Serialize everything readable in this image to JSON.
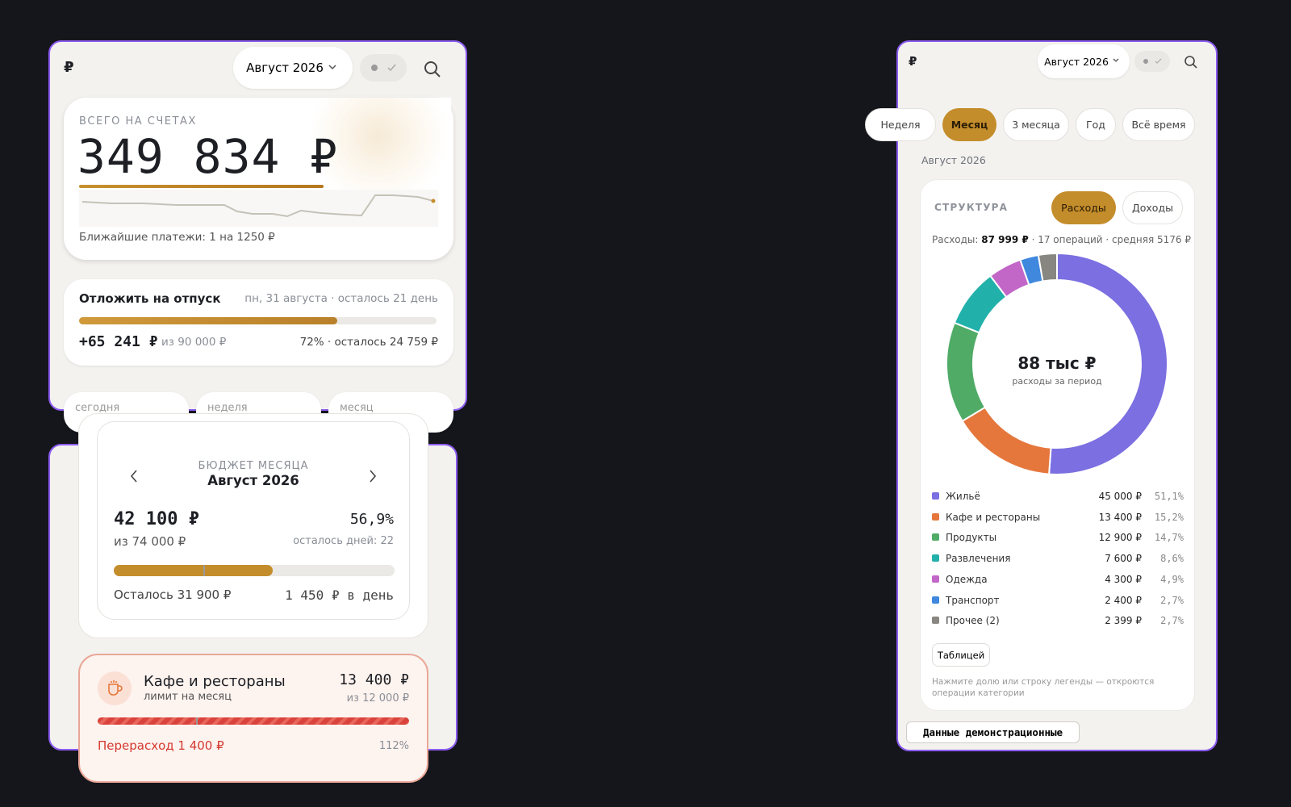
{
  "home": {
    "logo": "₽",
    "month": "Август 2026",
    "balance": {
      "label": "ВСЕГО НА СЧЕТАХ",
      "total": "349 834 ₽",
      "upcoming": "Ближайшие платежи: 1 на 1250 ₽"
    },
    "goal": {
      "title": "Отложить на отпуск",
      "date": "пн, 31 августа · осталось 21 день",
      "amount": "+65 241 ₽",
      "of": "из 90 000 ₽",
      "status": "72% · осталось 24 759 ₽"
    },
    "chips": [
      "сегодня",
      "неделя",
      "месяц"
    ]
  },
  "budget": {
    "label": "БЮДЖЕТ МЕСЯЦА",
    "month": "Август 2026",
    "spent": "42 100 ₽",
    "percent": "56,9%",
    "of": "из 74 000 ₽",
    "days_left": "осталось дней: 22",
    "remaining": "Осталось 31 900 ₽",
    "per_day": "1 450 ₽ в день",
    "category": {
      "name": "Кафе и рестораны",
      "subtitle": "лимит на месяц",
      "amount": "13 400 ₽",
      "of": "из 12 000 ₽",
      "overspend": "Перерасход 1 400 ₽",
      "percent": "112%"
    }
  },
  "structure": {
    "logo": "₽",
    "month": "Август 2026",
    "periods": [
      "Неделя",
      "Месяц",
      "3 месяца",
      "Год",
      "Всё время"
    ],
    "period_label": "Август 2026",
    "title": "СТРУКТУРА",
    "toggles": [
      "Расходы",
      "Доходы"
    ],
    "summary": {
      "prefix": "Расходы:",
      "total": "87 999 ₽",
      "rest": "· 17 операций · средняя 5176 ₽"
    },
    "center_value": "88 тыс ₽",
    "center_caption": "расходы за период",
    "chart": {
      "type": "pie",
      "categories": [
        "Жильё",
        "Кафе и рестораны",
        "Продукты",
        "Развлечения",
        "Одежда",
        "Транспорт",
        "Прочее (2)"
      ],
      "amounts": [
        "45 000 ₽",
        "13 400 ₽",
        "12 900 ₽",
        "7 600 ₽",
        "4 300 ₽",
        "2 400 ₽",
        "2 399 ₽"
      ],
      "values": [
        51.1,
        15.2,
        14.7,
        8.6,
        4.9,
        2.7,
        2.7
      ],
      "value_labels": [
        "51,1%",
        "15,2%",
        "14,7%",
        "8,6%",
        "4,9%",
        "2,7%",
        "2,7%"
      ],
      "colors": [
        "#7b6fe1",
        "#e5773c",
        "#4fab66",
        "#22b1aa",
        "#c266c8",
        "#3f88de",
        "#878680"
      ]
    },
    "table_button": "Таблицей",
    "hint": "Нажмите долю или строку легенды — откроются операции категории",
    "badge": "Данные демонстрационные"
  }
}
